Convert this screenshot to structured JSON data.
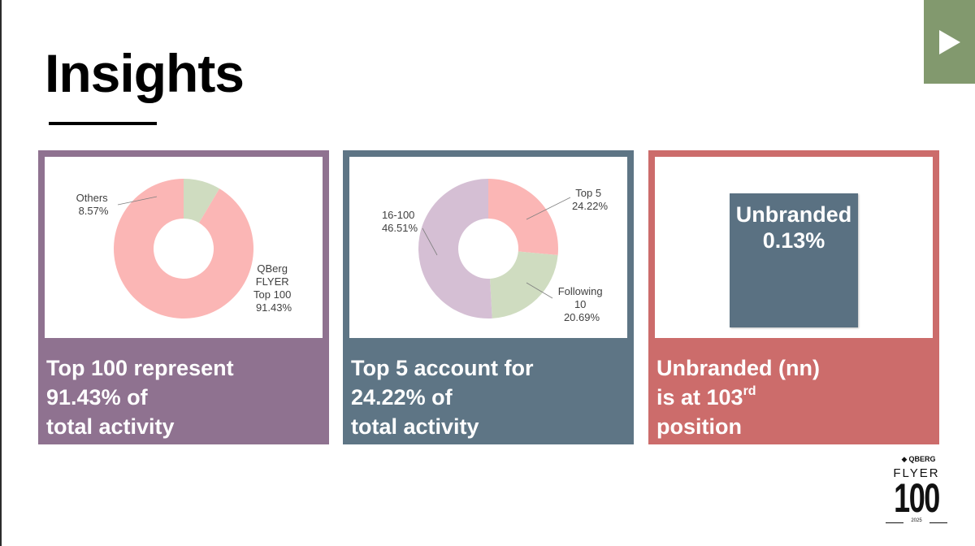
{
  "slide": {
    "title": "Insights",
    "play_icon": "play-triangle-icon"
  },
  "cards": [
    {
      "caption_lines": [
        "Top 100 represent",
        "91.43% of",
        "total activity"
      ],
      "accent": "#8f7290",
      "chart": {
        "labels": [
          {
            "lines": [
              "Others",
              "8.57%"
            ]
          },
          {
            "lines": [
              "QBerg",
              "FLYER",
              "Top 100",
              "91.43%"
            ]
          }
        ]
      }
    },
    {
      "caption_lines": [
        "Top 5 account for",
        "24.22% of",
        "total activity"
      ],
      "accent": "#5e7585",
      "chart": {
        "labels": [
          {
            "lines": [
              "Top 5",
              "24.22%"
            ]
          },
          {
            "lines": [
              "Following",
              "10",
              "20.69%"
            ]
          },
          {
            "lines": [
              "16-100",
              "46.51%"
            ]
          }
        ]
      }
    },
    {
      "caption_lines": [
        "Unbranded (nn)",
        "is at 103",
        "position"
      ],
      "caption_superscript": "rd",
      "accent": "#cc6c6b",
      "box": {
        "label": "Unbranded",
        "value": "0.13%",
        "color": "#5a7182"
      }
    }
  ],
  "chart_data": [
    {
      "type": "pie",
      "categories": [
        "Others",
        "QBerg FLYER Top 100"
      ],
      "values": [
        8.57,
        91.43
      ],
      "colors": [
        "#cfdcc0",
        "#fbb6b5"
      ],
      "donut": true
    },
    {
      "type": "pie",
      "categories": [
        "Top 5",
        "Following 10",
        "16-100"
      ],
      "values": [
        24.22,
        20.69,
        46.51
      ],
      "colors": [
        "#fbb6b5",
        "#cfdcc0",
        "#d5bfd4"
      ],
      "donut": true
    }
  ],
  "logo": {
    "brand": "QBERG",
    "name": "FLYER",
    "number": "100",
    "year": "2025"
  }
}
